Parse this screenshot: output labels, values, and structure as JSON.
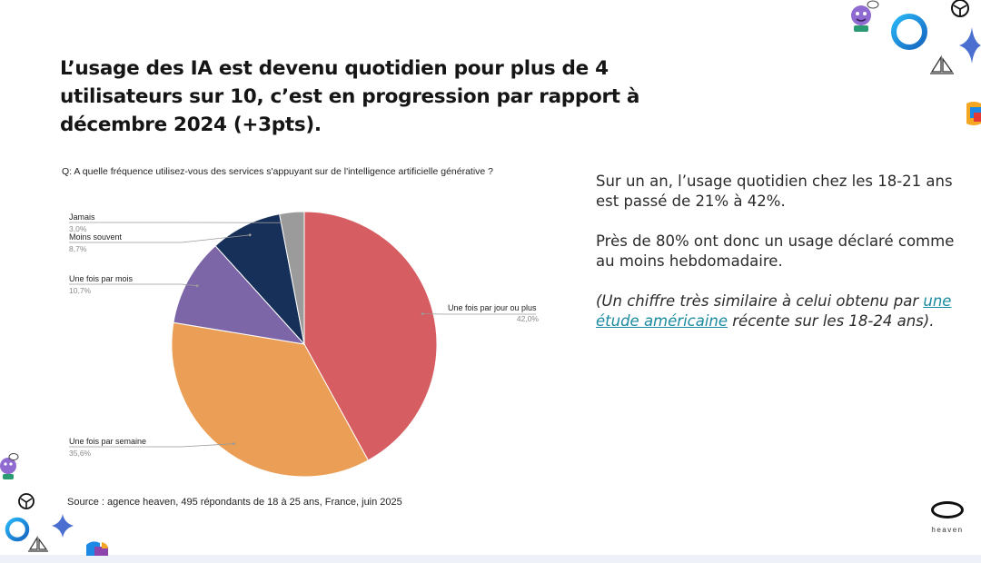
{
  "title": "L’usage des IA est devenu quotidien pour plus de 4 utilisateurs sur 10,  c’est en progression par rapport à décembre 2024 (+3pts).",
  "question": "Q: A quelle fréquence utilisez-vous des services s'appuyant sur de l'intelligence artificielle générative ?",
  "chart_data": {
    "type": "pie",
    "slices": [
      {
        "label": "Une fois par jour ou plus",
        "value": 42.0,
        "display": "42,0%",
        "color": "#d65d61"
      },
      {
        "label": "Une fois par semaine",
        "value": 35.6,
        "display": "35,6%",
        "color": "#eb9e55"
      },
      {
        "label": "Une fois par mois",
        "value": 10.7,
        "display": "10,7%",
        "color": "#7d66a8"
      },
      {
        "label": "Moins souvent",
        "value": 8.7,
        "display": "8,7%",
        "color": "#17305a"
      },
      {
        "label": "Jamais",
        "value": 3.0,
        "display": "3,0%",
        "color": "#9b9b9b"
      }
    ]
  },
  "side_text": {
    "p1": "Sur un an, l’usage quotidien chez les 18-21 ans est passé de 21% à 42%.",
    "p2": "Près de 80% ont donc un usage déclaré comme au moins hebdomadaire.",
    "p3_before": "(Un chiffre très similaire à celui obtenu par ",
    "p3_link": "une étude américaine",
    "p3_after": " récente sur les 18-24 ans)."
  },
  "source": "Source : agence heaven, 495 répondants de 18 à 25 ans, France, juin 2025",
  "brand": {
    "name": "heaven"
  },
  "decorations": [
    "avatar-sticker-icon",
    "gradient-ring-icon",
    "openai-knot-icon",
    "sparkle-star-icon",
    "sailboat-icon",
    "copilot-logo-icon"
  ]
}
